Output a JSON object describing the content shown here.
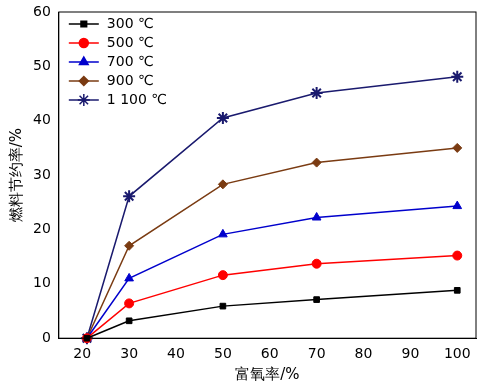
{
  "chart_data": {
    "type": "line",
    "x_label": "富氧率/%",
    "y_label": "燃料节约率/%",
    "x": [
      21,
      30,
      50,
      70,
      100
    ],
    "series": [
      {
        "name": "300 ℃",
        "color": "#000000",
        "marker": "square",
        "values": [
          0,
          3.2,
          5.9,
          7.1,
          8.8
        ]
      },
      {
        "name": "500 ℃",
        "color": "#ff0000",
        "marker": "circle",
        "values": [
          0,
          6.4,
          11.6,
          13.7,
          15.2
        ]
      },
      {
        "name": "700 ℃",
        "color": "#0000cc",
        "marker": "triangle",
        "values": [
          0,
          11,
          19.1,
          22.2,
          24.3
        ]
      },
      {
        "name": "900 ℃",
        "color": "#7a3b12",
        "marker": "diamond",
        "values": [
          0,
          17,
          28.3,
          32.3,
          35
        ]
      },
      {
        "name": "1 100 ℃",
        "color": "#1a1a6e",
        "marker": "star",
        "values": [
          0,
          26.1,
          40.5,
          45.1,
          48.1
        ]
      }
    ],
    "xlim": [
      15,
      104
    ],
    "xticks": [
      20,
      30,
      40,
      50,
      60,
      70,
      80,
      90,
      100
    ],
    "ylim": [
      0,
      60
    ],
    "yticks": [
      0,
      10,
      20,
      30,
      40,
      50,
      60
    ],
    "grid": false,
    "legend": "upper left"
  }
}
